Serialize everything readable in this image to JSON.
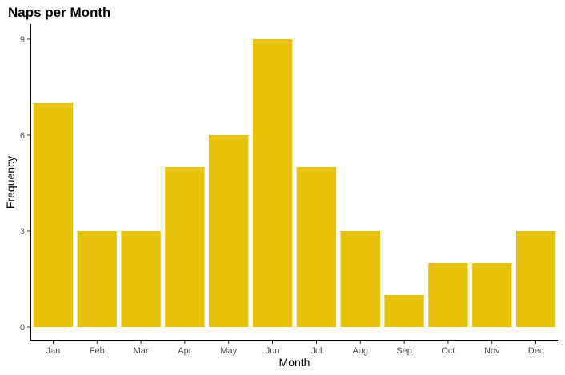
{
  "chart_data": {
    "type": "bar",
    "title": "Naps per Month",
    "xlabel": "Month",
    "ylabel": "Frequency",
    "categories": [
      "Jan",
      "Feb",
      "Mar",
      "Apr",
      "May",
      "Jun",
      "Jul",
      "Aug",
      "Sep",
      "Oct",
      "Nov",
      "Dec"
    ],
    "values": [
      7,
      3,
      3,
      5,
      6,
      9,
      5,
      3,
      1,
      2,
      2,
      3
    ],
    "ylim": [
      0,
      9
    ],
    "yticks": [
      0,
      3,
      6,
      9
    ],
    "grid": false,
    "legend": "none",
    "bar_color": "#E8C20A",
    "axis_color": "#000000"
  }
}
